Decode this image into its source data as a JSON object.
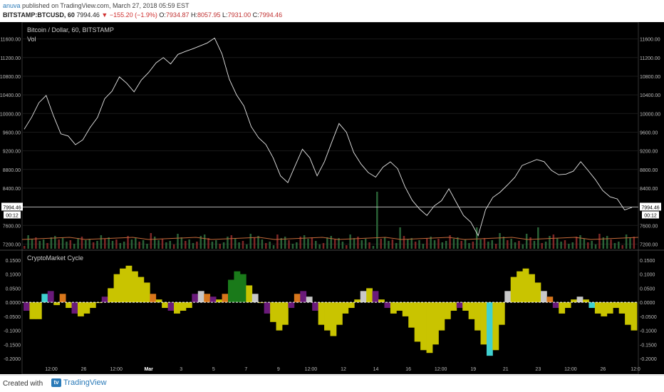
{
  "header": {
    "author": "anuva",
    "published_text": "published on TradingView.com, March 27, 2018 05:59 EST",
    "symbol": "BITSTAMP:BTCUSD, 60",
    "last": "7994.46",
    "change": "▼ −155.20 (−1.9%)",
    "o_label": "O:",
    "o_val": "7934.87",
    "h_label": "H:",
    "h_val": "8057.95",
    "l_label": "L:",
    "l_val": "7931.00",
    "c_label": "C:",
    "c_val": "7994.46"
  },
  "main_pane": {
    "title": "Bitcoin / Dollar, 60, BITSTAMP",
    "vol_label": "Vol",
    "price_label": "7994.46",
    "countdown": "00:12",
    "y_ticks": [
      "11600.00",
      "11200.00",
      "10800.00",
      "10400.00",
      "10000.00",
      "9600.00",
      "9200.00",
      "8800.00",
      "8400.00",
      "8000.00",
      "7600.00",
      "7200.00"
    ]
  },
  "indicator_pane": {
    "title": "CryptoMarket Cycle",
    "y_ticks": [
      "0.1500",
      "0.1000",
      "0.0500",
      "0.0000",
      "-0.0500",
      "-0.1000",
      "-0.1500",
      "-0.2000"
    ]
  },
  "x_axis": {
    "labels": [
      "12:00",
      "26",
      "12:00",
      "Mar",
      "3",
      "5",
      "7",
      "9",
      "12:00",
      "12",
      "14",
      "16",
      "12:00",
      "19",
      "21",
      "23",
      "12:00",
      "26",
      "12:0"
    ]
  },
  "footer": {
    "created_with": "Created with",
    "brand": "TradingView",
    "logo_glyph": "tv"
  },
  "colors": {
    "background": "#000000",
    "price_line": "#e6e6e6",
    "vol_up": "#2d6b3c",
    "vol_down": "#8b2a2a",
    "vol_ma": "#c46a3a",
    "yellow": "#c9c400",
    "orange": "#d7761b",
    "purple": "#6a1a7a",
    "green": "#1a7a1a",
    "cyan": "#3fd0d0",
    "grey": "#c8c8c8"
  },
  "chart_data": [
    {
      "type": "line",
      "title": "Bitcoin / Dollar, 60, BITSTAMP",
      "x_labels": [
        "12:00",
        "26",
        "12:00",
        "Mar",
        "3",
        "5",
        "7",
        "9",
        "12:00",
        "12",
        "14",
        "16",
        "12:00",
        "19",
        "21",
        "23",
        "12:00",
        "26",
        "12:0"
      ],
      "ylim": [
        7100,
        11900
      ],
      "series": [
        {
          "values": [
            9700,
            9900,
            10250,
            10350,
            9950,
            9600,
            9500,
            9350,
            9400,
            9700,
            9950,
            10300,
            10500,
            10750,
            10650,
            10500,
            10700,
            10900,
            11050,
            11200,
            11100,
            11250,
            11350,
            11350,
            11450,
            11550,
            11600,
            11300,
            10700,
            10400,
            10200,
            9700,
            9500,
            9300,
            9050,
            8700,
            8500,
            8900,
            9200,
            9050,
            8700,
            8950,
            9400,
            9750,
            9600,
            9200,
            8900,
            8750,
            8600,
            8850,
            9000,
            8800,
            8450,
            8100,
            7950,
            7850,
            8000,
            8150,
            8350,
            8100,
            7850,
            7650,
            7400,
            7900,
            8200,
            8350,
            8450,
            8650,
            8850,
            8950,
            9050,
            8950,
            8800,
            8650,
            8700,
            8800,
            8950,
            8800,
            8550,
            8350,
            8250,
            8150,
            7950,
            7950
          ]
        }
      ]
    },
    {
      "type": "bar",
      "title": "CryptoMarket Cycle",
      "ylim": [
        -0.22,
        0.17
      ],
      "values": [
        -0.03,
        -0.06,
        -0.06,
        0.03,
        0.04,
        -0.01,
        0.03,
        -0.02,
        -0.04,
        -0.05,
        -0.04,
        -0.02,
        0.0,
        0.02,
        0.05,
        0.1,
        0.12,
        0.13,
        0.11,
        0.09,
        0.07,
        0.03,
        0.01,
        -0.02,
        -0.03,
        -0.04,
        -0.03,
        -0.02,
        0.03,
        0.04,
        0.03,
        0.02,
        0.01,
        0.03,
        0.08,
        0.11,
        0.1,
        0.06,
        0.03,
        0.0,
        -0.04,
        -0.07,
        -0.1,
        -0.08,
        -0.02,
        0.03,
        0.04,
        0.02,
        -0.03,
        -0.08,
        -0.1,
        -0.12,
        -0.08,
        -0.04,
        -0.02,
        0.01,
        0.04,
        0.05,
        0.04,
        0.01,
        -0.02,
        -0.04,
        -0.03,
        -0.05,
        -0.09,
        -0.14,
        -0.17,
        -0.18,
        -0.15,
        -0.1,
        -0.06,
        -0.03,
        -0.02,
        -0.03,
        -0.06,
        -0.1,
        -0.15,
        -0.19,
        -0.17,
        -0.08,
        0.04,
        0.09,
        0.11,
        0.12,
        0.1,
        0.07,
        0.04,
        0.02,
        -0.02,
        -0.04,
        -0.02,
        0.01,
        0.02,
        0.01,
        -0.02,
        -0.04,
        -0.05,
        -0.04,
        -0.02,
        -0.04,
        -0.08,
        -0.1
      ]
    }
  ]
}
